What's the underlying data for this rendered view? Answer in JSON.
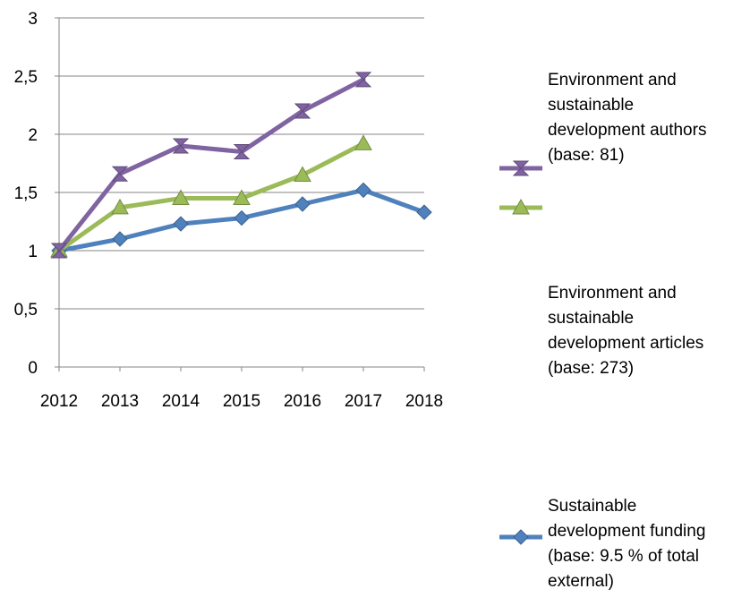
{
  "chart_data": {
    "type": "line",
    "x": [
      "2012",
      "2013",
      "2014",
      "2015",
      "2016",
      "2017",
      "2018"
    ],
    "ylim": [
      0,
      3
    ],
    "yticks": [
      "0",
      "0,5",
      "1",
      "1,5",
      "2",
      "2,5",
      "3"
    ],
    "ytick_values": [
      0,
      0.5,
      1,
      1.5,
      2,
      2.5,
      3
    ],
    "grid": true,
    "legend_position": "right",
    "series": [
      {
        "name": "Environment and sustainable development authors (base: 81)",
        "color": "#8064A2",
        "marker": "hourglass",
        "values": [
          1.0,
          1.66,
          1.9,
          1.85,
          2.2,
          2.47,
          null
        ]
      },
      {
        "name": "Environment and sustainable development articles (base: 273)",
        "color": "#9BBB59",
        "marker": "triangle",
        "values": [
          1.0,
          1.37,
          1.45,
          1.45,
          1.65,
          1.92,
          null
        ]
      },
      {
        "name": "Sustainable development funding (base: 9.5 % of total external)",
        "color": "#4F81BD",
        "marker": "diamond",
        "values": [
          1.0,
          1.1,
          1.23,
          1.28,
          1.4,
          1.52,
          1.33
        ]
      }
    ]
  }
}
